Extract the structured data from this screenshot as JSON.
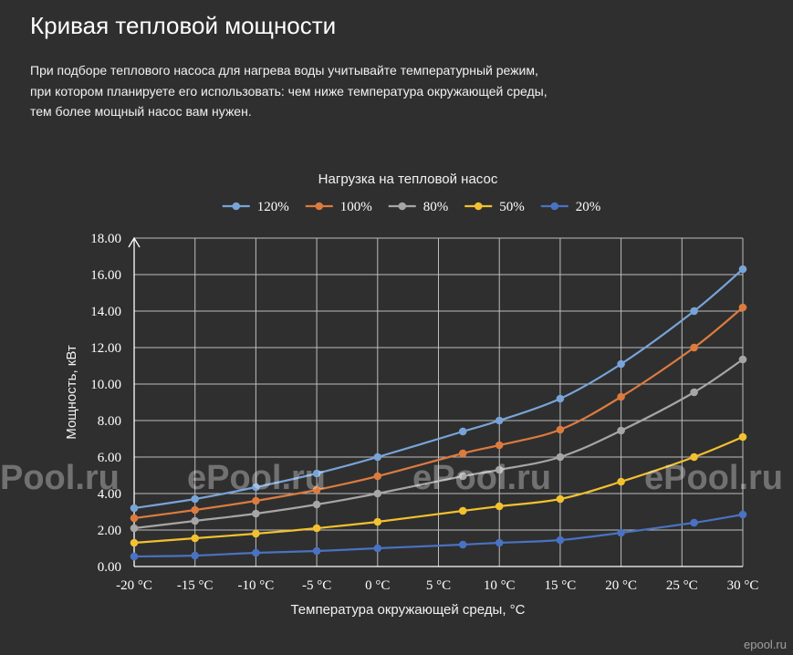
{
  "page": {
    "title": "Кривая тепловой мощности",
    "description_lines": [
      "При подборе теплового насоса для нагрева воды учитывайте температурный режим,",
      "при котором планируете его использовать: чем ниже температура окружающей среды,",
      "тем более мощный насос вам нужен."
    ]
  },
  "colors": {
    "background": "#2f2f2f",
    "text": "#ffffff",
    "grid": "#bdbdbd",
    "axis": "#ffffff"
  },
  "watermarks": {
    "repeated": [
      "Pool.ru",
      "ePool.ru",
      "ePool.ru",
      "ePool.ru"
    ],
    "logo": "epool.ru"
  },
  "chart_data": {
    "type": "line",
    "title": "Нагрузка на тепловой насос",
    "xlabel": "Температура окружающей среды, °C",
    "ylabel": "Мощность, кВт",
    "x": [
      -20,
      -15,
      -10,
      -5,
      0,
      7,
      10,
      15,
      20,
      26,
      30
    ],
    "xlim": [
      -20,
      30
    ],
    "xticks": [
      -20,
      -15,
      -10,
      -5,
      0,
      5,
      10,
      15,
      20,
      25,
      30
    ],
    "xtick_labels": [
      "-20 °C",
      "-15 °C",
      "-10 °C",
      "-5 °C",
      "0 °C",
      "5 °C",
      "10 °C",
      "15 °C",
      "20 °C",
      "25 °C",
      "30 °C"
    ],
    "ylim": [
      0,
      18
    ],
    "yticks": [
      0,
      2,
      4,
      6,
      8,
      10,
      12,
      14,
      16,
      18
    ],
    "ytick_labels": [
      "0.00",
      "2.00",
      "4.00",
      "6.00",
      "8.00",
      "10.00",
      "12.00",
      "14.00",
      "16.00",
      "18.00"
    ],
    "grid": true,
    "legend": "top",
    "series": [
      {
        "name": "120%",
        "color": "#78a4d8",
        "values": [
          3.2,
          3.7,
          4.35,
          5.1,
          6.0,
          7.4,
          8.0,
          9.2,
          11.1,
          14.0,
          16.3
        ]
      },
      {
        "name": "100%",
        "color": "#dd7b3e",
        "values": [
          2.65,
          3.1,
          3.6,
          4.2,
          4.95,
          6.2,
          6.65,
          7.5,
          9.3,
          12.0,
          14.2
        ]
      },
      {
        "name": "80%",
        "color": "#a6a6a6",
        "values": [
          2.1,
          2.5,
          2.9,
          3.4,
          4.0,
          4.95,
          5.3,
          6.0,
          7.45,
          9.55,
          11.35
        ]
      },
      {
        "name": "50%",
        "color": "#f3c12f",
        "values": [
          1.3,
          1.55,
          1.8,
          2.1,
          2.45,
          3.05,
          3.3,
          3.7,
          4.65,
          6.0,
          7.1
        ]
      },
      {
        "name": "20%",
        "color": "#4a72c2",
        "values": [
          0.55,
          0.6,
          0.75,
          0.85,
          1.0,
          1.2,
          1.3,
          1.45,
          1.85,
          2.4,
          2.85
        ]
      }
    ]
  }
}
